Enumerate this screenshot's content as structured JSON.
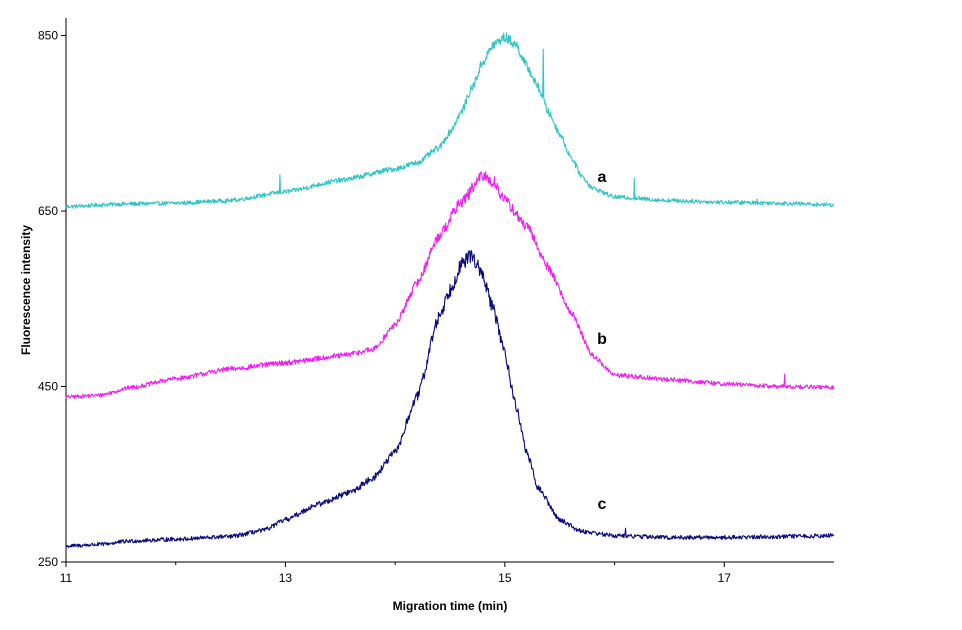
{
  "chart_data": {
    "type": "line",
    "title": "",
    "xlabel": "Migration time (min)",
    "ylabel": "Fluorescence  intensity",
    "xlim": [
      11,
      18
    ],
    "ylim": [
      250,
      870
    ],
    "xticks": [
      11,
      13,
      15,
      17
    ],
    "yticks": [
      250,
      450,
      650,
      850
    ],
    "grid": false,
    "legend": "none",
    "series": [
      {
        "name": "a",
        "color": "#33c4c4",
        "points": [
          [
            11.0,
            655
          ],
          [
            11.5,
            658
          ],
          [
            12.0,
            659
          ],
          [
            12.5,
            662
          ],
          [
            13.0,
            672
          ],
          [
            13.5,
            685
          ],
          [
            14.0,
            698
          ],
          [
            14.2,
            705
          ],
          [
            14.4,
            722
          ],
          [
            14.5,
            740
          ],
          [
            14.6,
            762
          ],
          [
            14.7,
            790
          ],
          [
            14.8,
            820
          ],
          [
            14.9,
            840
          ],
          [
            15.0,
            848
          ],
          [
            15.1,
            840
          ],
          [
            15.2,
            815
          ],
          [
            15.3,
            792
          ],
          [
            15.4,
            762
          ],
          [
            15.5,
            738
          ],
          [
            15.6,
            712
          ],
          [
            15.7,
            690
          ],
          [
            15.8,
            676
          ],
          [
            16.0,
            666
          ],
          [
            16.5,
            662
          ],
          [
            17.0,
            660
          ],
          [
            17.5,
            659
          ],
          [
            18.0,
            657
          ]
        ],
        "spikes": [
          [
            12.95,
            18
          ],
          [
            15.35,
            60
          ],
          [
            16.18,
            22
          ],
          [
            17.3,
            6
          ]
        ]
      },
      {
        "name": "b",
        "color": "#ee22ee",
        "points": [
          [
            11.0,
            438
          ],
          [
            11.3,
            440
          ],
          [
            11.6,
            449
          ],
          [
            12.0,
            459
          ],
          [
            12.5,
            470
          ],
          [
            13.0,
            477
          ],
          [
            13.5,
            485
          ],
          [
            13.8,
            492
          ],
          [
            14.0,
            520
          ],
          [
            14.2,
            568
          ],
          [
            14.4,
            622
          ],
          [
            14.6,
            660
          ],
          [
            14.8,
            690
          ],
          [
            14.9,
            683
          ],
          [
            15.0,
            662
          ],
          [
            15.2,
            632
          ],
          [
            15.4,
            585
          ],
          [
            15.6,
            535
          ],
          [
            15.8,
            485
          ],
          [
            16.0,
            463
          ],
          [
            16.5,
            458
          ],
          [
            17.0,
            453
          ],
          [
            17.5,
            450
          ],
          [
            18.0,
            449
          ]
        ],
        "spikes": [
          [
            17.55,
            12
          ]
        ]
      },
      {
        "name": "c",
        "color": "#0a0a7a",
        "points": [
          [
            11.0,
            268
          ],
          [
            11.3,
            270
          ],
          [
            11.6,
            274
          ],
          [
            12.0,
            276
          ],
          [
            12.5,
            279
          ],
          [
            12.8,
            286
          ],
          [
            13.0,
            298
          ],
          [
            13.3,
            316
          ],
          [
            13.6,
            330
          ],
          [
            13.8,
            346
          ],
          [
            14.0,
            375
          ],
          [
            14.2,
            438
          ],
          [
            14.4,
            530
          ],
          [
            14.5,
            560
          ],
          [
            14.6,
            588
          ],
          [
            14.7,
            600
          ],
          [
            14.8,
            575
          ],
          [
            14.9,
            536
          ],
          [
            15.0,
            488
          ],
          [
            15.1,
            428
          ],
          [
            15.2,
            375
          ],
          [
            15.3,
            335
          ],
          [
            15.5,
            298
          ],
          [
            15.7,
            285
          ],
          [
            16.0,
            280
          ],
          [
            16.5,
            278
          ],
          [
            17.0,
            278
          ],
          [
            17.5,
            279
          ],
          [
            18.0,
            280
          ]
        ],
        "spikes": [
          [
            16.1,
            8
          ]
        ]
      }
    ]
  }
}
